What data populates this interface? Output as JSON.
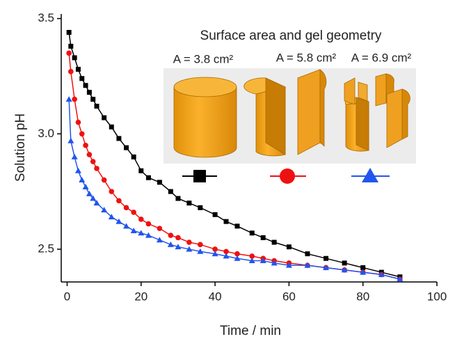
{
  "chart_data": {
    "type": "line",
    "xlabel": "Time / min",
    "ylabel": "Solution pH",
    "annotations": [
      "Surface area and gel geometry",
      "A = 3.8 cm²",
      "A = 5.8 cm²",
      "A = 6.9 cm²"
    ],
    "x": [
      0.5,
      1,
      2,
      3,
      4,
      5,
      6,
      7,
      8,
      10,
      12,
      14,
      16,
      18,
      20,
      22,
      25,
      28,
      30,
      33,
      36,
      40,
      43,
      46,
      50,
      53,
      56,
      60,
      65,
      70,
      75,
      80,
      85,
      90
    ],
    "series": [
      {
        "color": "#000000",
        "marker": "square",
        "values": [
          3.44,
          3.38,
          3.33,
          3.28,
          3.24,
          3.21,
          3.18,
          3.15,
          3.12,
          3.07,
          3.03,
          2.98,
          2.94,
          2.9,
          2.84,
          2.81,
          2.79,
          2.75,
          2.72,
          2.7,
          2.68,
          2.65,
          2.62,
          2.6,
          2.57,
          2.55,
          2.53,
          2.51,
          2.48,
          2.46,
          2.44,
          2.42,
          2.4,
          2.38
        ]
      },
      {
        "color": "#ee1111",
        "marker": "circle",
        "values": [
          3.35,
          3.27,
          3.15,
          3.05,
          3.0,
          2.95,
          2.91,
          2.88,
          2.85,
          2.8,
          2.75,
          2.71,
          2.68,
          2.66,
          2.63,
          2.61,
          2.59,
          2.56,
          2.55,
          2.53,
          2.52,
          2.5,
          2.49,
          2.48,
          2.47,
          2.46,
          2.45,
          2.44,
          2.43,
          2.42,
          2.41,
          2.4,
          2.39,
          2.37
        ]
      },
      {
        "color": "#2255ee",
        "marker": "triangle",
        "values": [
          3.15,
          2.97,
          2.9,
          2.84,
          2.8,
          2.77,
          2.74,
          2.72,
          2.7,
          2.67,
          2.64,
          2.62,
          2.6,
          2.58,
          2.57,
          2.56,
          2.54,
          2.52,
          2.51,
          2.5,
          2.49,
          2.48,
          2.47,
          2.46,
          2.45,
          2.45,
          2.44,
          2.43,
          2.43,
          2.42,
          2.41,
          2.4,
          2.39,
          2.37
        ]
      }
    ],
    "xlim": [
      -1.6,
      100
    ],
    "xticks": [
      0,
      20,
      40,
      60,
      80,
      100
    ],
    "ylim": [
      2.358,
      3.52
    ],
    "yticks": [
      2.5,
      {
        "value": 3,
        "label": "3.0"
      },
      3.5
    ]
  }
}
